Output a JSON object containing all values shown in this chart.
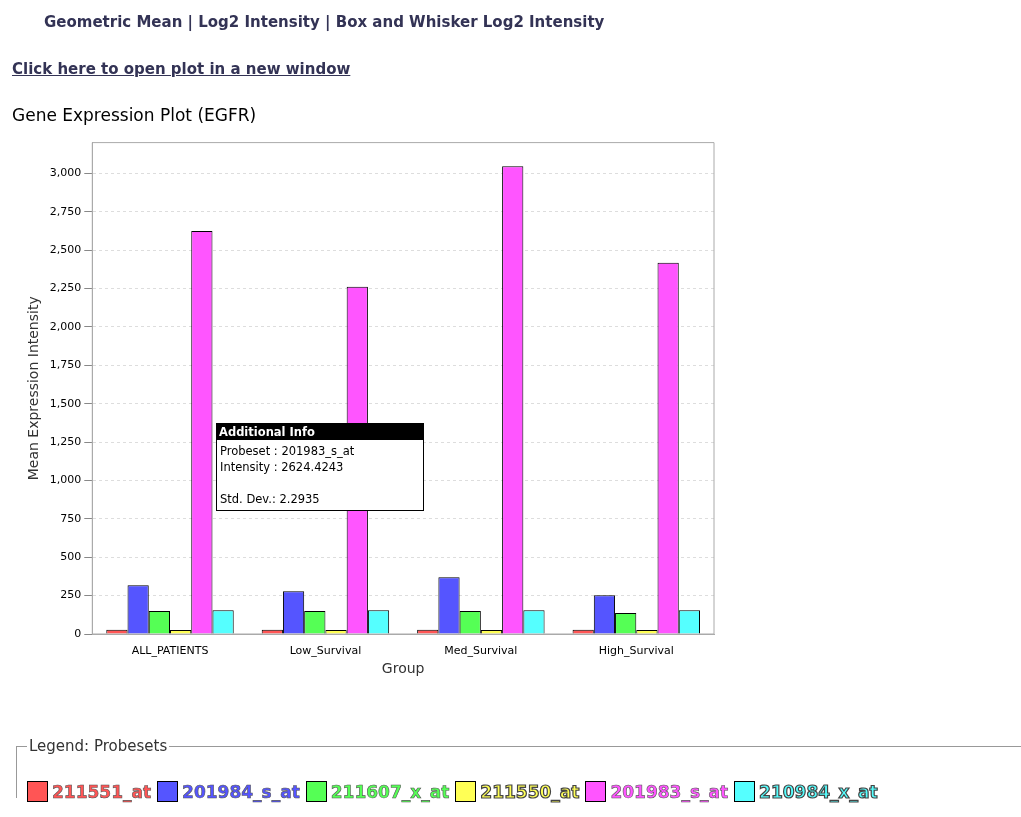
{
  "chart_data": {
    "type": "bar",
    "title": "Gene Expression Plot (EGFR)",
    "xlabel": "Group",
    "ylabel": "Mean Expression Intensity",
    "legend_title": "Legend: Probesets",
    "legend": "bottom",
    "grid": "y",
    "categories": [
      "ALL_PATIENTS",
      "Low_Survival",
      "Med_Survival",
      "High_Survival"
    ],
    "ylim": [
      0,
      3200
    ],
    "yticks": [
      {
        "value": 0,
        "label": "0"
      },
      {
        "value": 250,
        "label": "250"
      },
      {
        "value": 500,
        "label": "500"
      },
      {
        "value": 750,
        "label": "750"
      },
      {
        "value": 1000,
        "label": "1,000"
      },
      {
        "value": 1250,
        "label": "1,250"
      },
      {
        "value": 1500,
        "label": "1,500"
      },
      {
        "value": 1750,
        "label": "1,750"
      },
      {
        "value": 2000,
        "label": "2,000"
      },
      {
        "value": 2250,
        "label": "2,250"
      },
      {
        "value": 2500,
        "label": "2,500"
      },
      {
        "value": 2750,
        "label": "2,750"
      },
      {
        "value": 3000,
        "label": "3,000"
      }
    ],
    "series": [
      {
        "name": "211551_at",
        "color": "#ff5555",
        "values": [
          28,
          28,
          28,
          28
        ]
      },
      {
        "name": "201984_s_at",
        "color": "#5555ff",
        "values": [
          318,
          279,
          369,
          253
        ]
      },
      {
        "name": "211607_x_at",
        "color": "#55ff55",
        "values": [
          149,
          149,
          149,
          136
        ]
      },
      {
        "name": "211550_at",
        "color": "#ffff55",
        "values": [
          26,
          26,
          26,
          26
        ]
      },
      {
        "name": "201983_s_at",
        "color": "#ff55ff",
        "values": [
          2624,
          2262,
          3046,
          2417
        ]
      },
      {
        "name": "210984_x_at",
        "color": "#55ffff",
        "values": [
          155,
          155,
          155,
          155
        ]
      }
    ],
    "annotations": [
      "Geometric Mean | Log2 Intensity | Box and Whisker Log2 Intensity",
      "Click here to open plot in a new window",
      "Additional Info",
      "Probeset : 201983_s_at",
      "Intensity : 2624.4243",
      "Std. Dev.: 2.2935"
    ]
  }
}
